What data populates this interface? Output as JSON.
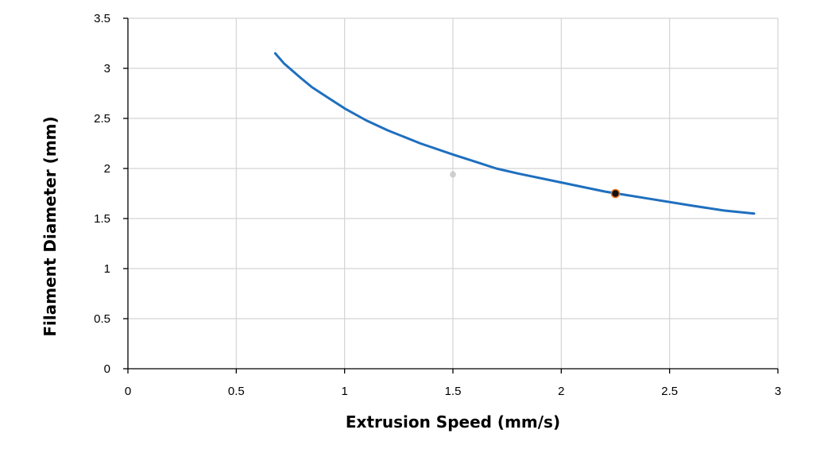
{
  "chart_data": {
    "type": "line",
    "title": "",
    "xlabel": "Extrusion Speed (mm/s)",
    "ylabel": "Filament Diameter (mm)",
    "xlim": [
      0,
      3
    ],
    "ylim": [
      0,
      3.5
    ],
    "xticks": [
      "0",
      "0.5",
      "1",
      "1.5",
      "2",
      "2.5",
      "3"
    ],
    "yticks": [
      "0",
      "0.5",
      "1",
      "1.5",
      "2",
      "2.5",
      "3",
      "3.5"
    ],
    "grid": true,
    "legend": "none",
    "series": [
      {
        "color": "#1f6fbf",
        "x": [
          0.68,
          0.72,
          0.8,
          0.85,
          0.9,
          1.0,
          1.1,
          1.2,
          1.35,
          1.5,
          1.6,
          1.7,
          1.8,
          2.0,
          2.2,
          2.4,
          2.6,
          2.75,
          2.89
        ],
        "y": [
          3.15,
          3.05,
          2.9,
          2.81,
          2.74,
          2.6,
          2.48,
          2.38,
          2.25,
          2.14,
          2.07,
          2.0,
          1.95,
          1.86,
          1.77,
          1.7,
          1.63,
          1.58,
          1.55
        ]
      }
    ],
    "marker": {
      "x": 2.25,
      "y": 1.75,
      "fill": "#111111",
      "edge": "#e87722"
    },
    "faint_marker": {
      "x": 1.5,
      "y": 1.94,
      "color": "#bfbfbf"
    }
  }
}
